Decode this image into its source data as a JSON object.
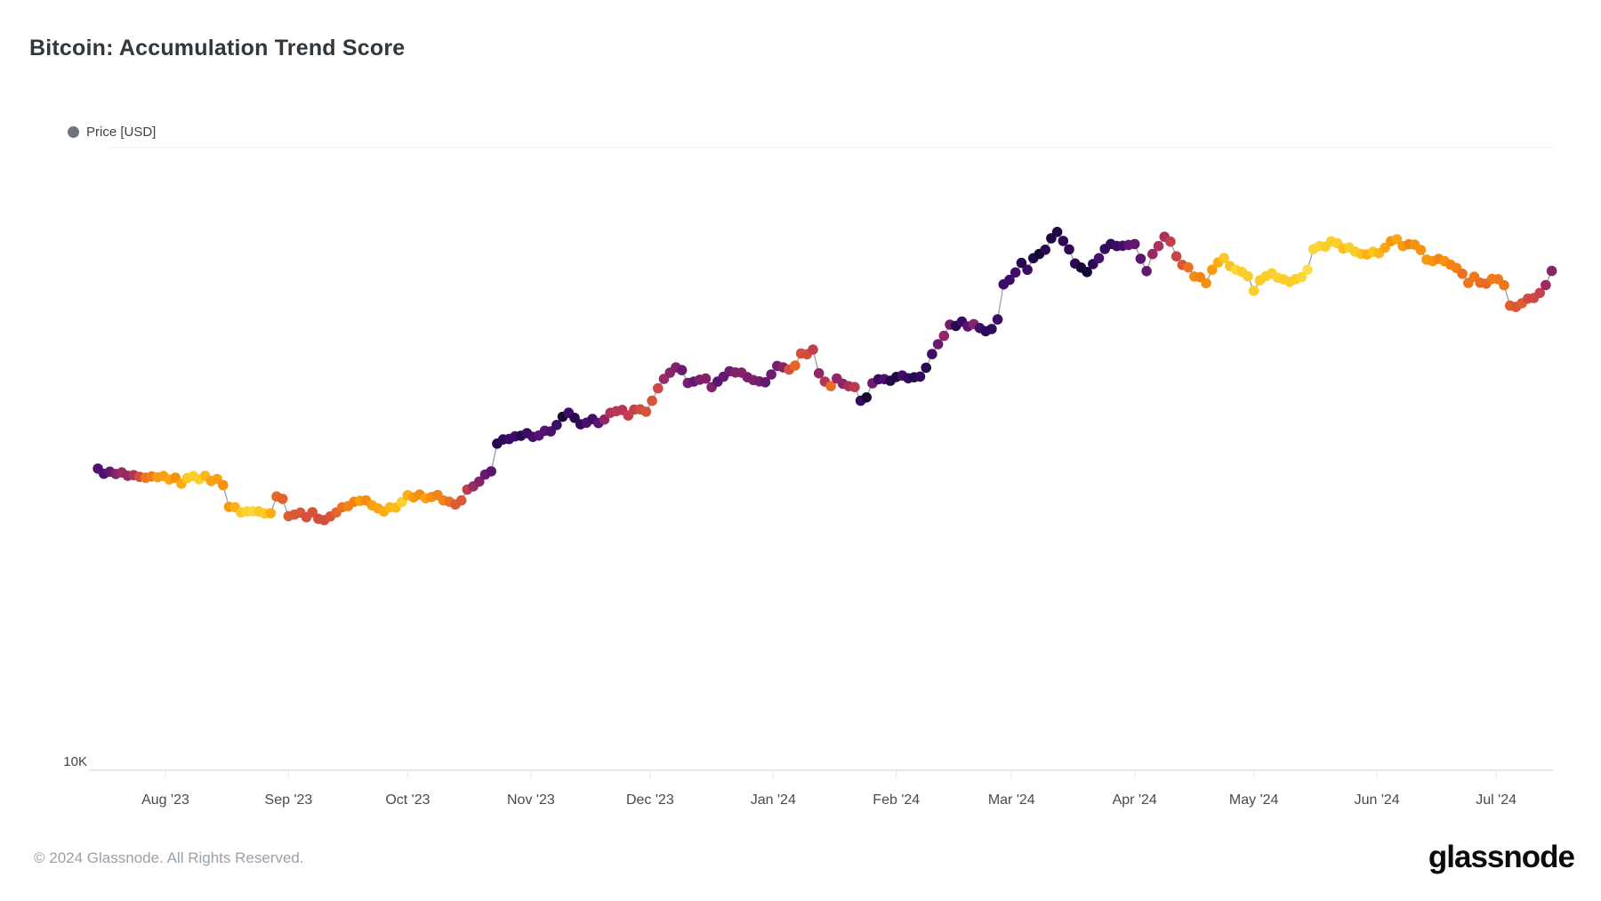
{
  "title": "Bitcoin: Accumulation Trend Score",
  "legend": {
    "label": "Price [USD]",
    "dot_color": "#6f747b"
  },
  "y_axis": {
    "tick_label": "10K"
  },
  "x_axis": {
    "ticks": [
      {
        "label": "Aug '23",
        "date": "2023-08-01"
      },
      {
        "label": "Sep '23",
        "date": "2023-09-01"
      },
      {
        "label": "Oct '23",
        "date": "2023-10-01"
      },
      {
        "label": "Nov '23",
        "date": "2023-11-01"
      },
      {
        "label": "Dec '23",
        "date": "2023-12-01"
      },
      {
        "label": "Jan '24",
        "date": "2024-01-01"
      },
      {
        "label": "Feb '24",
        "date": "2024-02-01"
      },
      {
        "label": "Mar '24",
        "date": "2024-03-01"
      },
      {
        "label": "Apr '24",
        "date": "2024-04-01"
      },
      {
        "label": "May '24",
        "date": "2024-05-01"
      },
      {
        "label": "Jun '24",
        "date": "2024-06-01"
      },
      {
        "label": "Jul '24",
        "date": "2024-07-01"
      }
    ]
  },
  "footer": {
    "copyright": "© 2024 Glassnode. All Rights Reserved.",
    "brand": "glassnode"
  },
  "chart_data": {
    "type": "scatter",
    "title": "Bitcoin: Accumulation Trend Score",
    "series_name": "Price [USD] colored by Accumulation Trend Score",
    "x_unit": "date",
    "y_unit": "USD",
    "y_scale": "log",
    "y_gridlines": [
      10000,
      100000
    ],
    "y_tick_labeled": {
      "value": 10000,
      "label": "10K"
    },
    "legend_position": "top-left",
    "sampling_days": 1.5,
    "price_jitter": 0.011,
    "score_jitter": 0.08,
    "color_scale_stops": [
      [
        0.0,
        "#fbe25a"
      ],
      [
        0.06,
        "#fad93d"
      ],
      [
        0.14,
        "#fcc822"
      ],
      [
        0.22,
        "#fbad12"
      ],
      [
        0.3,
        "#f8950e"
      ],
      [
        0.38,
        "#f27c17"
      ],
      [
        0.46,
        "#e4612c"
      ],
      [
        0.54,
        "#d44d3e"
      ],
      [
        0.62,
        "#b73655"
      ],
      [
        0.7,
        "#9a2a64"
      ],
      [
        0.78,
        "#781f6e"
      ],
      [
        0.86,
        "#551273"
      ],
      [
        0.93,
        "#330a60"
      ],
      [
        1.0,
        "#0d0628"
      ]
    ],
    "points": [
      [
        "2023-07-15",
        30300,
        0.9
      ],
      [
        "2023-07-17",
        30150,
        0.86
      ],
      [
        "2023-07-19",
        29800,
        0.74
      ],
      [
        "2023-07-21",
        29900,
        0.7
      ],
      [
        "2023-07-23",
        29600,
        0.68
      ],
      [
        "2023-07-25",
        29350,
        0.55
      ],
      [
        "2023-07-27",
        29300,
        0.4
      ],
      [
        "2023-07-30",
        29400,
        0.3
      ],
      [
        "2023-08-01",
        29650,
        0.22
      ],
      [
        "2023-08-04",
        29150,
        0.3
      ],
      [
        "2023-08-06",
        29050,
        0.2
      ],
      [
        "2023-08-08",
        29900,
        0.1
      ],
      [
        "2023-08-10",
        29500,
        0.16
      ],
      [
        "2023-08-13",
        29300,
        0.24
      ],
      [
        "2023-08-15",
        29150,
        0.28
      ],
      [
        "2023-08-16",
        28750,
        0.3
      ],
      [
        "2023-08-17",
        26550,
        0.3
      ],
      [
        "2023-08-19",
        26150,
        0.16
      ],
      [
        "2023-08-22",
        26000,
        0.1
      ],
      [
        "2023-08-25",
        26050,
        0.12
      ],
      [
        "2023-08-27",
        26150,
        0.16
      ],
      [
        "2023-08-28",
        26100,
        0.3
      ],
      [
        "2023-08-29",
        27650,
        0.45
      ],
      [
        "2023-08-31",
        27050,
        0.42
      ],
      [
        "2023-09-01",
        25850,
        0.48
      ],
      [
        "2023-09-04",
        25800,
        0.5
      ],
      [
        "2023-09-07",
        25700,
        0.54
      ],
      [
        "2023-09-09",
        25550,
        0.58
      ],
      [
        "2023-09-11",
        25100,
        0.52
      ],
      [
        "2023-09-13",
        26150,
        0.46
      ],
      [
        "2023-09-15",
        26500,
        0.38
      ],
      [
        "2023-09-18",
        27050,
        0.32
      ],
      [
        "2023-09-20",
        27150,
        0.3
      ],
      [
        "2023-09-22",
        26550,
        0.28
      ],
      [
        "2023-09-25",
        26200,
        0.26
      ],
      [
        "2023-09-27",
        26450,
        0.18
      ],
      [
        "2023-09-30",
        27100,
        0.1
      ],
      [
        "2023-10-01",
        27950,
        0.24
      ],
      [
        "2023-10-03",
        27400,
        0.28
      ],
      [
        "2023-10-06",
        27550,
        0.3
      ],
      [
        "2023-10-08",
        27900,
        0.32
      ],
      [
        "2023-10-11",
        26800,
        0.42
      ],
      [
        "2023-10-13",
        26700,
        0.46
      ],
      [
        "2023-10-15",
        27100,
        0.5
      ],
      [
        "2023-10-16",
        28450,
        0.62
      ],
      [
        "2023-10-18",
        28350,
        0.72
      ],
      [
        "2023-10-20",
        29650,
        0.8
      ],
      [
        "2023-10-22",
        29950,
        0.88
      ],
      [
        "2023-10-23",
        33050,
        0.93
      ],
      [
        "2023-10-25",
        34250,
        0.95
      ],
      [
        "2023-10-27",
        33950,
        0.93
      ],
      [
        "2023-10-30",
        34350,
        0.94
      ],
      [
        "2023-11-01",
        34650,
        0.92
      ],
      [
        "2023-11-03",
        34750,
        0.84
      ],
      [
        "2023-11-05",
        35000,
        0.9
      ],
      [
        "2023-11-07",
        35400,
        0.93
      ],
      [
        "2023-11-09",
        36650,
        0.95
      ],
      [
        "2023-11-10",
        37300,
        0.93
      ],
      [
        "2023-11-12",
        36950,
        0.92
      ],
      [
        "2023-11-13",
        35550,
        0.92
      ],
      [
        "2023-11-15",
        35850,
        0.9
      ],
      [
        "2023-11-17",
        36400,
        0.92
      ],
      [
        "2023-11-19",
        36550,
        0.84
      ],
      [
        "2023-11-20",
        37350,
        0.64
      ],
      [
        "2023-11-22",
        37250,
        0.6
      ],
      [
        "2023-11-24",
        37750,
        0.58
      ],
      [
        "2023-11-26",
        37450,
        0.6
      ],
      [
        "2023-11-28",
        38050,
        0.56
      ],
      [
        "2023-11-30",
        37850,
        0.54
      ],
      [
        "2023-12-02",
        39400,
        0.52
      ],
      [
        "2023-12-04",
        41950,
        0.66
      ],
      [
        "2023-12-06",
        43800,
        0.76
      ],
      [
        "2023-12-08",
        44150,
        0.8
      ],
      [
        "2023-12-10",
        43650,
        0.82
      ],
      [
        "2023-12-11",
        40650,
        0.78
      ],
      [
        "2023-12-13",
        42850,
        0.8
      ],
      [
        "2023-12-15",
        42350,
        0.78
      ],
      [
        "2023-12-17",
        41350,
        0.8
      ],
      [
        "2023-12-19",
        42650,
        0.82
      ],
      [
        "2023-12-21",
        43900,
        0.78
      ],
      [
        "2023-12-23",
        43650,
        0.76
      ],
      [
        "2023-12-26",
        42550,
        0.8
      ],
      [
        "2023-12-29",
        42500,
        0.82
      ],
      [
        "2023-12-31",
        42200,
        0.8
      ],
      [
        "2024-01-02",
        44950,
        0.78
      ],
      [
        "2024-01-04",
        44150,
        0.7
      ],
      [
        "2024-01-06",
        43900,
        0.42
      ],
      [
        "2024-01-08",
        46950,
        0.52
      ],
      [
        "2024-01-10",
        46600,
        0.56
      ],
      [
        "2024-01-11",
        47100,
        0.58
      ],
      [
        "2024-01-13",
        42800,
        0.74
      ],
      [
        "2024-01-14",
        41800,
        0.62
      ],
      [
        "2024-01-15",
        41500,
        0.33
      ],
      [
        "2024-01-17",
        42700,
        0.74
      ],
      [
        "2024-01-19",
        41600,
        0.78
      ],
      [
        "2024-01-20",
        41500,
        0.62
      ],
      [
        "2024-01-22",
        40750,
        0.58
      ],
      [
        "2024-01-23",
        38950,
        0.94
      ],
      [
        "2024-01-25",
        40000,
        0.95
      ],
      [
        "2024-01-26",
        41550,
        0.84
      ],
      [
        "2024-01-29",
        42500,
        0.9
      ],
      [
        "2024-02-01",
        42550,
        0.93
      ],
      [
        "2024-02-04",
        42800,
        0.94
      ],
      [
        "2024-02-07",
        43150,
        0.91
      ],
      [
        "2024-02-09",
        45350,
        0.93
      ],
      [
        "2024-02-11",
        47800,
        0.92
      ],
      [
        "2024-02-12",
        48300,
        0.7
      ],
      [
        "2024-02-14",
        51850,
        0.76
      ],
      [
        "2024-02-16",
        52150,
        0.92
      ],
      [
        "2024-02-18",
        52100,
        0.95
      ],
      [
        "2024-02-20",
        52250,
        0.7
      ],
      [
        "2024-02-22",
        51350,
        0.93
      ],
      [
        "2024-02-24",
        50800,
        0.91
      ],
      [
        "2024-02-26",
        51800,
        0.9
      ],
      [
        "2024-02-27",
        54550,
        0.92
      ],
      [
        "2024-02-28",
        60500,
        0.95
      ],
      [
        "2024-03-01",
        62400,
        0.94
      ],
      [
        "2024-03-03",
        63200,
        0.92
      ],
      [
        "2024-03-04",
        68100,
        0.93
      ],
      [
        "2024-03-05",
        63900,
        0.91
      ],
      [
        "2024-03-07",
        66900,
        0.94
      ],
      [
        "2024-03-09",
        68350,
        0.96
      ],
      [
        "2024-03-11",
        72150,
        0.97
      ],
      [
        "2024-03-13",
        73100,
        0.98
      ],
      [
        "2024-03-15",
        69400,
        0.96
      ],
      [
        "2024-03-16",
        67500,
        0.94
      ],
      [
        "2024-03-17",
        65300,
        0.93
      ],
      [
        "2024-03-18",
        67600,
        0.95
      ],
      [
        "2024-03-19",
        61950,
        0.97
      ],
      [
        "2024-03-21",
        65400,
        0.94
      ],
      [
        "2024-03-23",
        66100,
        0.91
      ],
      [
        "2024-03-25",
        69900,
        0.93
      ],
      [
        "2024-03-27",
        69500,
        0.91
      ],
      [
        "2024-03-29",
        69900,
        0.88
      ],
      [
        "2024-04-01",
        69650,
        0.81
      ],
      [
        "2024-04-03",
        65500,
        0.82
      ],
      [
        "2024-04-04",
        63900,
        0.79
      ],
      [
        "2024-04-06",
        67900,
        0.7
      ],
      [
        "2024-04-08",
        71600,
        0.63
      ],
      [
        "2024-04-10",
        70650,
        0.58
      ],
      [
        "2024-04-12",
        66550,
        0.53
      ],
      [
        "2024-04-14",
        64500,
        0.46
      ],
      [
        "2024-04-16",
        62300,
        0.36
      ],
      [
        "2024-04-18",
        61300,
        0.31
      ],
      [
        "2024-04-19",
        60600,
        0.28
      ],
      [
        "2024-04-21",
        64900,
        0.26
      ],
      [
        "2024-04-23",
        66400,
        0.16
      ],
      [
        "2024-04-25",
        64500,
        0.13
      ],
      [
        "2024-04-27",
        63200,
        0.1
      ],
      [
        "2024-04-29",
        62900,
        0.12
      ],
      [
        "2024-04-30",
        60650,
        0.1
      ],
      [
        "2024-05-01",
        58350,
        0.08
      ],
      [
        "2024-05-03",
        61500,
        0.09
      ],
      [
        "2024-05-06",
        63250,
        0.11
      ],
      [
        "2024-05-08",
        61250,
        0.13
      ],
      [
        "2024-05-10",
        60850,
        0.1
      ],
      [
        "2024-05-12",
        61500,
        0.08
      ],
      [
        "2024-05-14",
        61850,
        0.06
      ],
      [
        "2024-05-15",
        66300,
        0.05
      ],
      [
        "2024-05-17",
        69900,
        0.04
      ],
      [
        "2024-05-19",
        69300,
        0.08
      ],
      [
        "2024-05-21",
        70750,
        0.1
      ],
      [
        "2024-05-23",
        68300,
        0.16
      ],
      [
        "2024-05-25",
        68650,
        0.12
      ],
      [
        "2024-05-27",
        68400,
        0.16
      ],
      [
        "2024-05-29",
        67900,
        0.2
      ],
      [
        "2024-05-31",
        67650,
        0.18
      ],
      [
        "2024-06-02",
        68450,
        0.22
      ],
      [
        "2024-06-04",
        70650,
        0.26
      ],
      [
        "2024-06-06",
        71150,
        0.28
      ],
      [
        "2024-06-08",
        69400,
        0.31
      ],
      [
        "2024-06-10",
        69600,
        0.33
      ],
      [
        "2024-06-12",
        68300,
        0.3
      ],
      [
        "2024-06-14",
        66100,
        0.33
      ],
      [
        "2024-06-16",
        66650,
        0.35
      ],
      [
        "2024-06-18",
        65200,
        0.33
      ],
      [
        "2024-06-20",
        64900,
        0.36
      ],
      [
        "2024-06-22",
        64250,
        0.38
      ],
      [
        "2024-06-24",
        60300,
        0.41
      ],
      [
        "2024-06-25",
        61800,
        0.36
      ],
      [
        "2024-06-27",
        60900,
        0.39
      ],
      [
        "2024-06-29",
        60400,
        0.42
      ],
      [
        "2024-07-01",
        62750,
        0.4
      ],
      [
        "2024-07-03",
        60200,
        0.43
      ],
      [
        "2024-07-05",
        54600,
        0.46
      ],
      [
        "2024-07-07",
        56050,
        0.51
      ],
      [
        "2024-07-09",
        56900,
        0.55
      ],
      [
        "2024-07-11",
        57400,
        0.58
      ],
      [
        "2024-07-13",
        59250,
        0.63
      ],
      [
        "2024-07-14",
        60900,
        0.68
      ],
      [
        "2024-07-15",
        63800,
        0.73
      ]
    ]
  }
}
